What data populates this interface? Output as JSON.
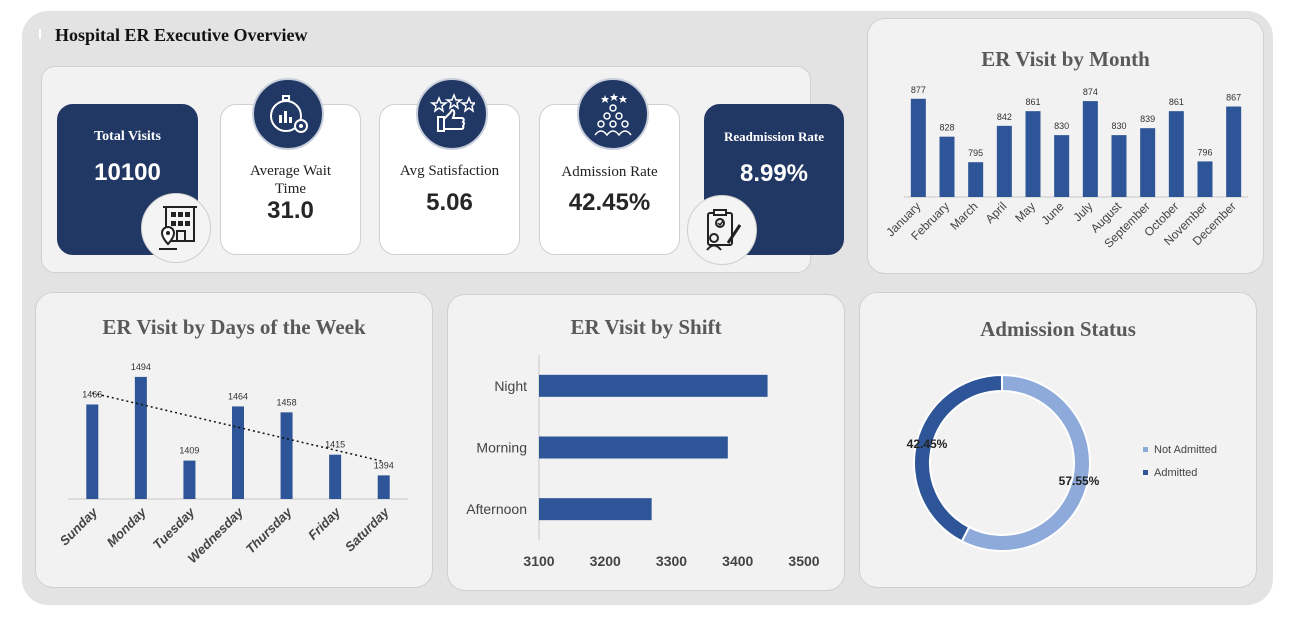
{
  "dashboard": {
    "title": "Hospital ER Executive Overview"
  },
  "kpis": {
    "total_visits": {
      "label": "Total Visits",
      "value": "10100"
    },
    "avg_wait": {
      "label": "Average Wait Time",
      "value": "31.0"
    },
    "avg_satisfaction": {
      "label": "Avg Satisfaction",
      "value": "5.06"
    },
    "admission_rate": {
      "label": "Admission Rate",
      "value": "42.45%"
    },
    "readmission_rate": {
      "label": "Readmission Rate",
      "value": "8.99%"
    }
  },
  "icons": {
    "total_visits": "hospital-building-location-icon",
    "avg_wait": "stopwatch-gear-chart-icon",
    "avg_satisfaction": "thumbs-up-stars-icon",
    "admission_rate": "patient-group-stars-icon",
    "readmission_rate": "clipboard-patient-icon"
  },
  "colors": {
    "navy": "#213764",
    "bar": "#2e5597",
    "light_blue": "#8eaadb",
    "panel": "#f2f2f2",
    "background": "#e3e3e3"
  },
  "chart_data": [
    {
      "type": "bar",
      "title": "ER Visit by Month",
      "categories": [
        "January",
        "February",
        "March",
        "April",
        "May",
        "June",
        "July",
        "August",
        "September",
        "October",
        "November",
        "December"
      ],
      "values": [
        877,
        828,
        795,
        842,
        861,
        830,
        874,
        830,
        839,
        861,
        796,
        867
      ],
      "data_labels": true,
      "ylim": [
        750,
        900
      ],
      "grid": false
    },
    {
      "type": "bar",
      "title": "ER Visit by Days of the Week",
      "categories": [
        "Sunday",
        "Monday",
        "Tuesday",
        "Wednesday",
        "Thursday",
        "Friday",
        "Saturday"
      ],
      "values": [
        1466,
        1494,
        1409,
        1464,
        1458,
        1415,
        1394
      ],
      "data_labels": true,
      "trendline": "linear dotted",
      "ylim": [
        1370,
        1500
      ],
      "grid": false
    },
    {
      "type": "bar",
      "orientation": "horizontal",
      "title": "ER Visit by Shift",
      "categories": [
        "Night",
        "Morning",
        "Afternoon"
      ],
      "values": [
        3445,
        3385,
        3270
      ],
      "xlim": [
        3100,
        3500
      ],
      "xticks": [
        "3100",
        "3200",
        "3300",
        "3400",
        "3500"
      ],
      "grid": false
    },
    {
      "type": "pie",
      "donut": true,
      "title": "Admission Status",
      "series": [
        {
          "name": "Not Admitted",
          "value": 57.55,
          "label": "57.55%",
          "color": "#8eaadb"
        },
        {
          "name": "Admitted",
          "value": 42.45,
          "label": "42.45%",
          "color": "#2e5597"
        }
      ],
      "legend": "right"
    }
  ]
}
